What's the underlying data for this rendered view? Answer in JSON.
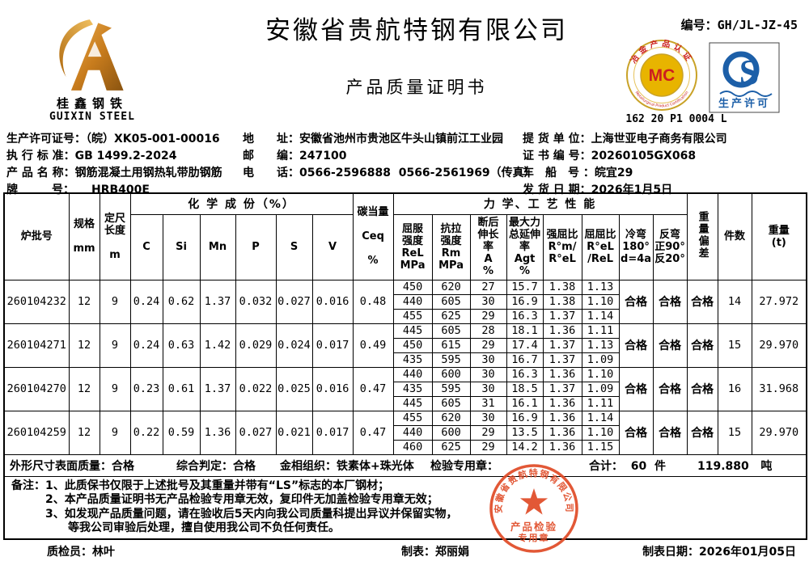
{
  "letterhead": {
    "company": "安徽省贵航特钢有限公司",
    "doc_title": "产品质量证明书",
    "serial": "编号：GH/JL-JZ-45",
    "logo": {
      "cn": "桂鑫钢铁",
      "en": "GUIXIN STEEL"
    },
    "mc_badge": {
      "letters": "MC",
      "arc_top": "冶金产品认证",
      "arc_bottom": "Metallurgical Product Certification",
      "code": "162 20 P1 0004 L",
      "ring_color": "#c9a227",
      "disc_color": "#e8b400",
      "text_color": "#cc1f1f"
    },
    "qs_badge": {
      "letter": "S",
      "caption": "生产许可",
      "color": "#1c5fa8"
    }
  },
  "info": {
    "left": [
      "生产许可证号：（皖）XK05-001-00016",
      "执 行 标 准：GB 1499.2-2024",
      "产 品 名 称：钢筋混凝土用钢热轧带肋钢筋",
      "牌　　　号：　　HRB400E"
    ],
    "middle": [
      "地　　址：安徽省池州市贵池区牛头山镇前江工业园",
      "邮　　编：247100",
      "电　　话：0566-2596888  0566-2561969（传真）"
    ],
    "right": [
      "提 货 单 位：上海世亚电子商务有限公司",
      "证 书 编 号：20260105GX068",
      "车　船　号 ：皖宜29",
      "发 货 日 期：2026年1月5日"
    ]
  },
  "table": {
    "headers": {
      "heat_no": "炉批号",
      "spec": "规格\n\nmm",
      "length": "定尺\n长度\n\nm",
      "chem_group": "化 学 成 份（%）",
      "elements": [
        "C",
        "Si",
        "Mn",
        "P",
        "S",
        "V"
      ],
      "ceq": "碳当量\n\nCeq\n\n%",
      "mech_group": "力 学、工 艺 性 能",
      "mech_cols": [
        "屈服\n强度\nReL\nMPa",
        "抗拉\n强度\nRm\nMPa",
        "断后\n伸长\n率\nA\n%",
        "最大力\n总延伸\n率\nAgt\n%",
        "强屈比\nR°m/\nR°eL",
        "屈屈比\nR°eL\n/ReL",
        "冷弯\n180°\nd=4a",
        "反弯\n正90°\n反20°"
      ],
      "weight_dev": "重量偏差",
      "pieces": "件数",
      "weight": "重量\n(t)"
    },
    "batches": [
      {
        "heat_no": "260104232",
        "spec": "12",
        "length": "9",
        "chem": [
          "0.24",
          "0.62",
          "1.37",
          "0.032",
          "0.027",
          "0.016"
        ],
        "ceq": "0.48",
        "mech": [
          [
            "450",
            "620",
            "27",
            "15.7",
            "1.38",
            "1.13"
          ],
          [
            "440",
            "605",
            "30",
            "16.9",
            "1.38",
            "1.10"
          ],
          [
            "455",
            "625",
            "29",
            "16.3",
            "1.37",
            "1.14"
          ]
        ],
        "cold_bend": "合格",
        "reverse_bend": "合格",
        "weight_dev": "合格",
        "pieces": "14",
        "weight": "27.972"
      },
      {
        "heat_no": "260104271",
        "spec": "12",
        "length": "9",
        "chem": [
          "0.24",
          "0.63",
          "1.42",
          "0.029",
          "0.024",
          "0.017"
        ],
        "ceq": "0.49",
        "mech": [
          [
            "445",
            "605",
            "28",
            "18.1",
            "1.36",
            "1.11"
          ],
          [
            "450",
            "615",
            "29",
            "17.4",
            "1.37",
            "1.13"
          ],
          [
            "435",
            "595",
            "30",
            "16.7",
            "1.37",
            "1.09"
          ]
        ],
        "cold_bend": "合格",
        "reverse_bend": "合格",
        "weight_dev": "合格",
        "pieces": "15",
        "weight": "29.970"
      },
      {
        "heat_no": "260104270",
        "spec": "12",
        "length": "9",
        "chem": [
          "0.23",
          "0.61",
          "1.37",
          "0.022",
          "0.025",
          "0.016"
        ],
        "ceq": "0.47",
        "mech": [
          [
            "440",
            "600",
            "30",
            "16.3",
            "1.36",
            "1.10"
          ],
          [
            "435",
            "595",
            "30",
            "18.5",
            "1.37",
            "1.09"
          ],
          [
            "445",
            "605",
            "31",
            "16.1",
            "1.36",
            "1.11"
          ]
        ],
        "cold_bend": "合格",
        "reverse_bend": "合格",
        "weight_dev": "合格",
        "pieces": "16",
        "weight": "31.968"
      },
      {
        "heat_no": "260104259",
        "spec": "12",
        "length": "9",
        "chem": [
          "0.22",
          "0.59",
          "1.36",
          "0.027",
          "0.021",
          "0.017"
        ],
        "ceq": "0.47",
        "mech": [
          [
            "455",
            "620",
            "30",
            "16.9",
            "1.36",
            "1.14"
          ],
          [
            "440",
            "600",
            "29",
            "13.5",
            "1.36",
            "1.10"
          ],
          [
            "460",
            "625",
            "29",
            "14.2",
            "1.36",
            "1.15"
          ]
        ],
        "cold_bend": "合格",
        "reverse_bend": "合格",
        "weight_dev": "合格",
        "pieces": "15",
        "weight": "29.970"
      }
    ],
    "summary": [
      "外形尺寸表面质量：合格",
      "综合判定：合格",
      "金相组织：铁素体+珠光体",
      "检验专用章：",
      "合计：  60  件",
      "119.880   吨"
    ],
    "remarks": [
      "备注：1、此质保书仅限于上述批号及其重量并带有“LS”标志的本厂钢材；",
      "　　　2、本产品质量证明书无产品检验专用章无效，复印件无加盖检验专用章无效；",
      "　　　3、如发现产品质量问题，请在验收后5天内向我公司质量科提出异议并保留实物，",
      "　　　　　等我公司审验后处理，擅自使用我公司不负任何责任。"
    ]
  },
  "stamp": {
    "arc": "安徽省贵航特钢有限公司",
    "line1": "产品检验",
    "line2": "专用章",
    "color": "#e04a26"
  },
  "footer": {
    "inspector": "质检员：林叶",
    "preparer": "制表：郑丽娟",
    "date": "制表日期：2026年01月05日"
  }
}
